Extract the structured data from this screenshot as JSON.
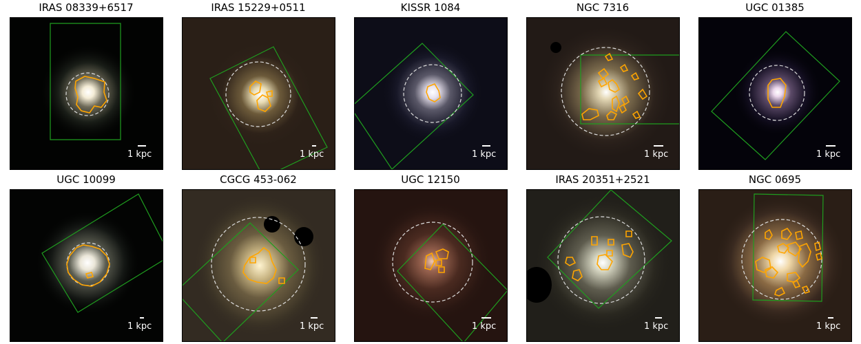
{
  "scale_label": "1 kpc",
  "colors": {
    "footprint": "#1f9e1f",
    "contour": "#ffa500",
    "aperture": "#dddddd"
  },
  "panels": [
    {
      "title": "IRAS 08339+6517"
    },
    {
      "title": "IRAS 15229+0511"
    },
    {
      "title": "KISSR 1084"
    },
    {
      "title": "NGC 7316"
    },
    {
      "title": "UGC 01385"
    },
    {
      "title": "UGC 10099"
    },
    {
      "title": "CGCG 453-062"
    },
    {
      "title": "UGC 12150"
    },
    {
      "title": "IRAS 20351+2521"
    },
    {
      "title": "NGC 0695"
    }
  ]
}
